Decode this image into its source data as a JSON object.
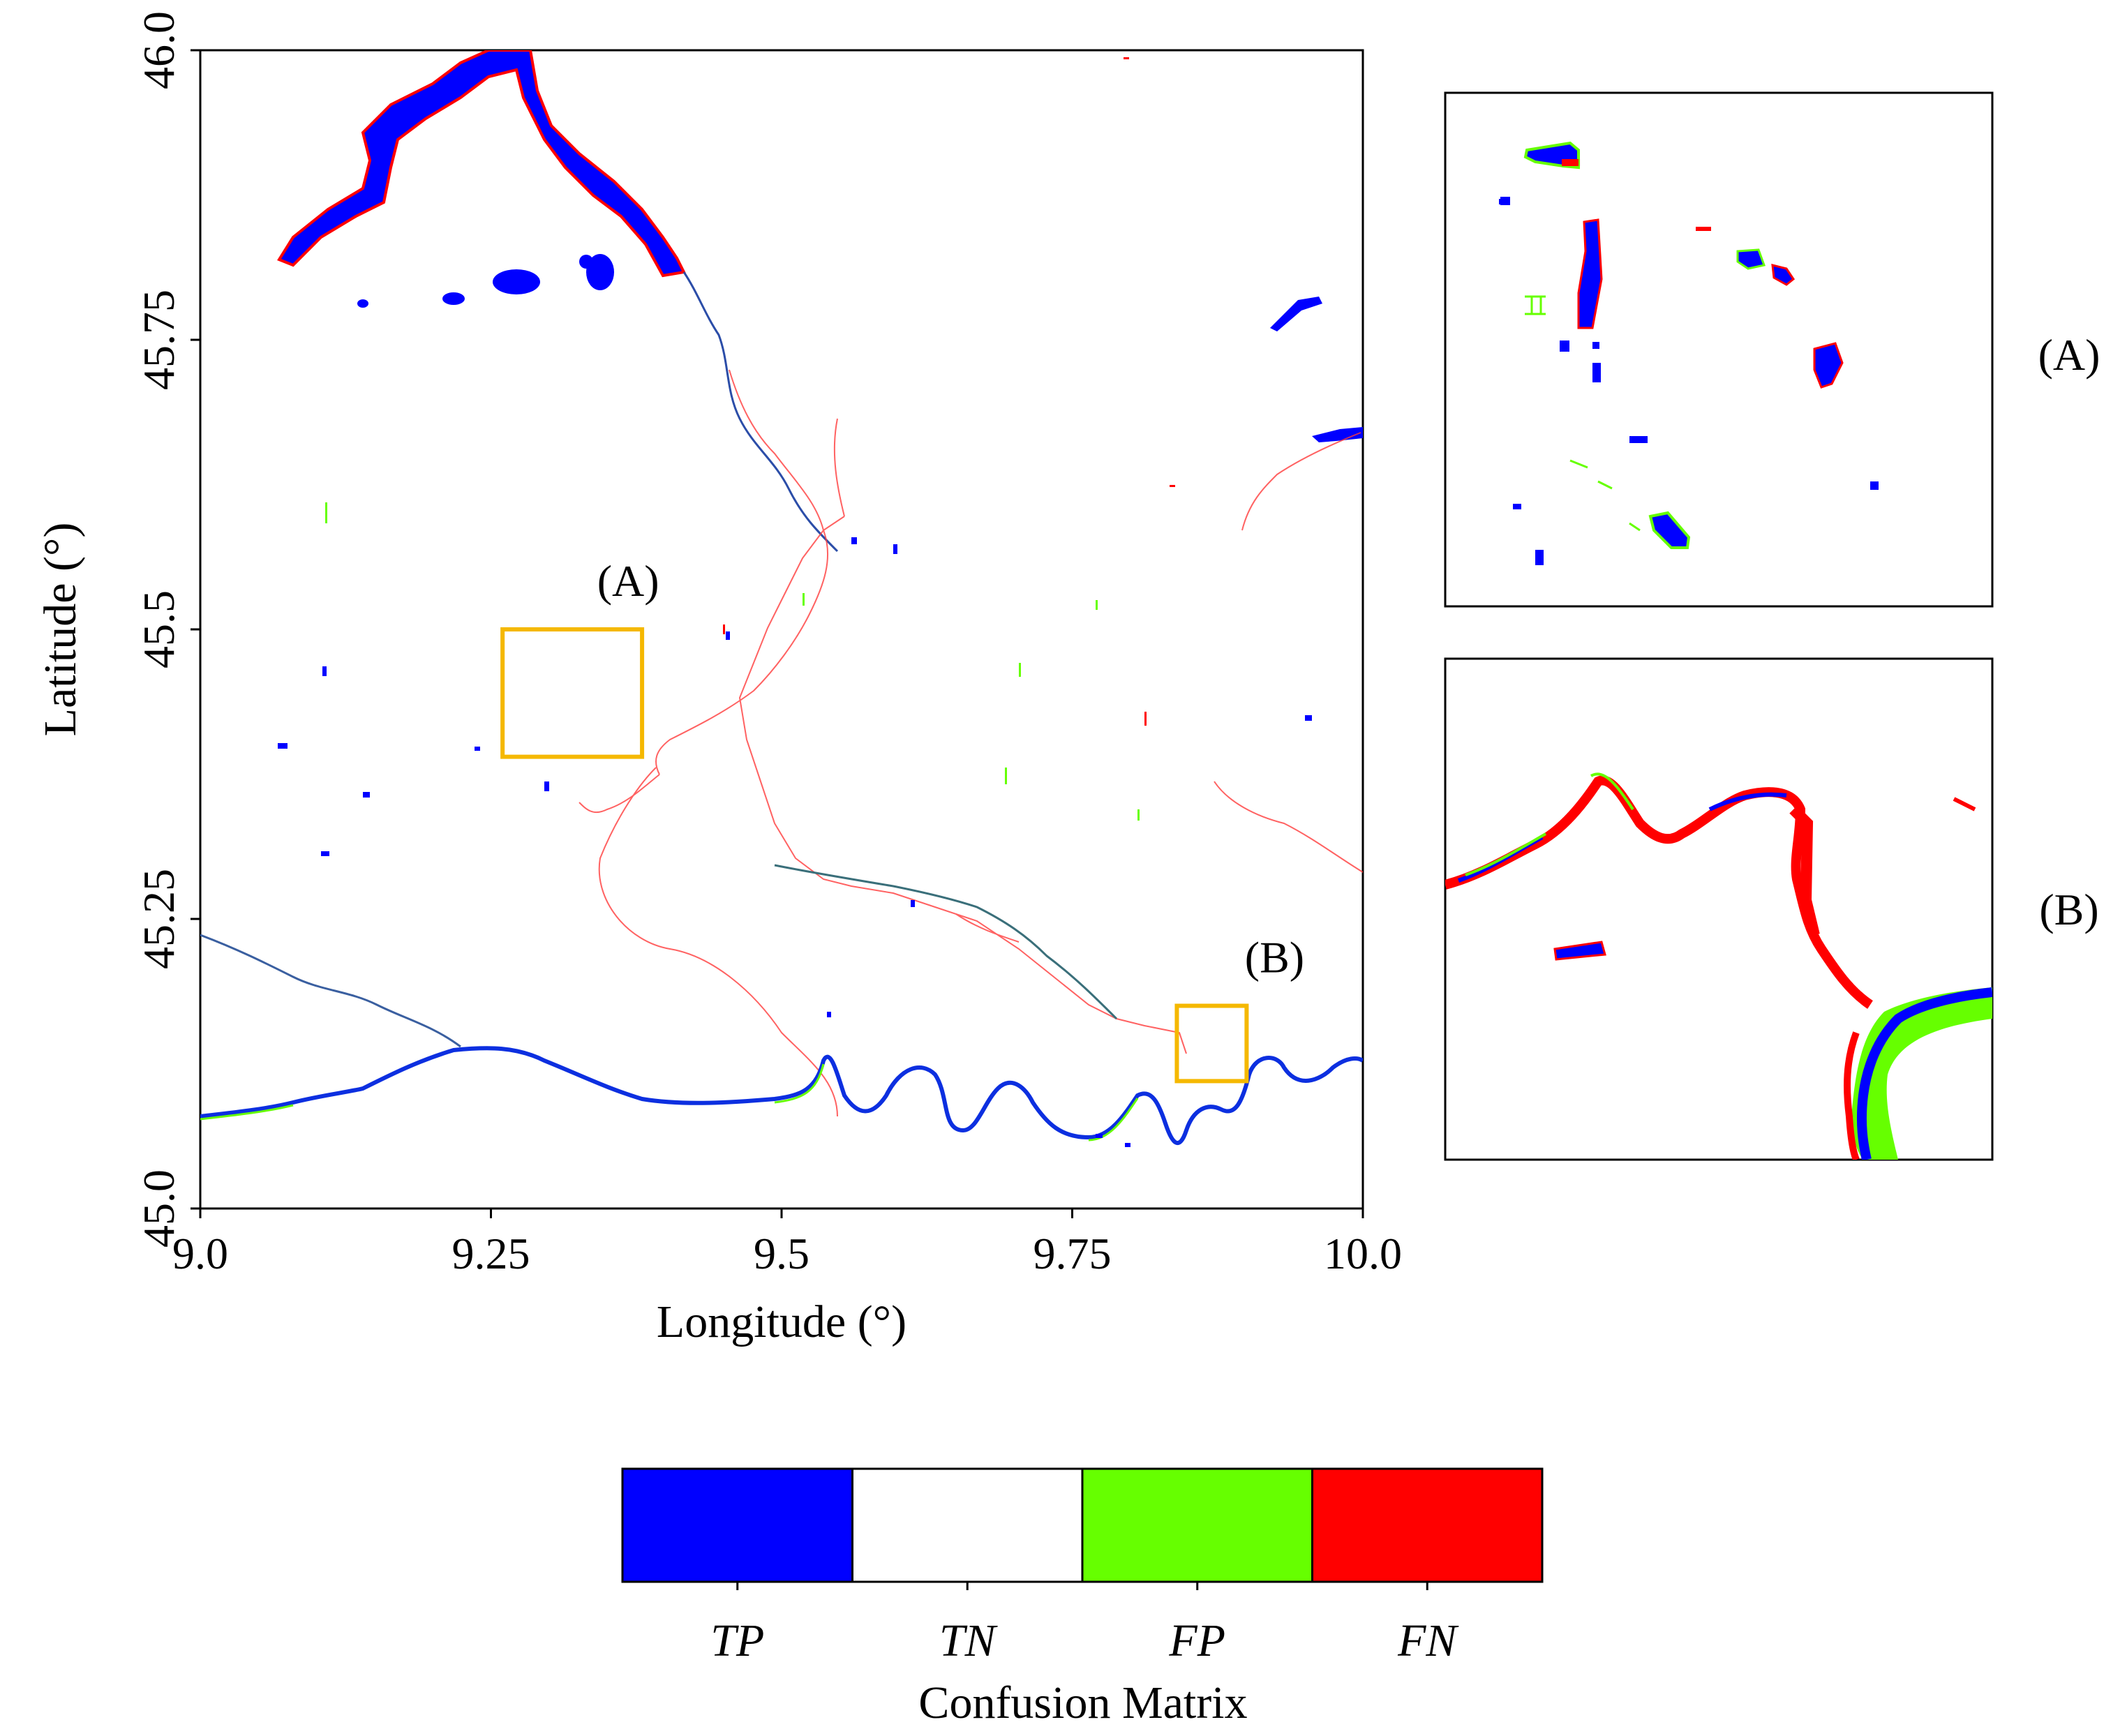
{
  "map": {
    "x_axis": {
      "label": "Longitude (°)",
      "range": [
        9.0,
        10.0
      ],
      "ticks": [
        {
          "value": 9.0,
          "label": "9.0"
        },
        {
          "value": 9.25,
          "label": "9.25"
        },
        {
          "value": 9.5,
          "label": "9.5"
        },
        {
          "value": 9.75,
          "label": "9.75"
        },
        {
          "value": 10.0,
          "label": "10.0"
        }
      ]
    },
    "y_axis": {
      "label": "Latitude (°)",
      "range": [
        45.0,
        46.0
      ],
      "ticks": [
        {
          "value": 45.0,
          "label": "45.0"
        },
        {
          "value": 45.25,
          "label": "45.25"
        },
        {
          "value": 45.5,
          "label": "45.5"
        },
        {
          "value": 45.75,
          "label": "45.75"
        },
        {
          "value": 46.0,
          "label": "46.0"
        }
      ]
    },
    "regions": [
      {
        "id": "A",
        "label": "(A)",
        "lon_range": [
          9.26,
          9.38
        ],
        "lat_range": [
          45.39,
          45.5
        ]
      },
      {
        "id": "B",
        "label": "(B)",
        "lon_range": [
          9.84,
          9.9
        ],
        "lat_range": [
          45.11,
          45.175
        ]
      }
    ],
    "region_box_color": "#f5b800"
  },
  "insets": [
    {
      "id": "A",
      "label": "(A)"
    },
    {
      "id": "B",
      "label": "(B)"
    }
  ],
  "legend": {
    "title": "Confusion Matrix",
    "classes": [
      {
        "code": "TP",
        "label": "TP",
        "color": "#0000ff"
      },
      {
        "code": "TN",
        "label": "TN",
        "color": "#ffffff"
      },
      {
        "code": "FP",
        "label": "FP",
        "color": "#66ff00"
      },
      {
        "code": "FN",
        "label": "FN",
        "color": "#ff0000"
      }
    ]
  }
}
